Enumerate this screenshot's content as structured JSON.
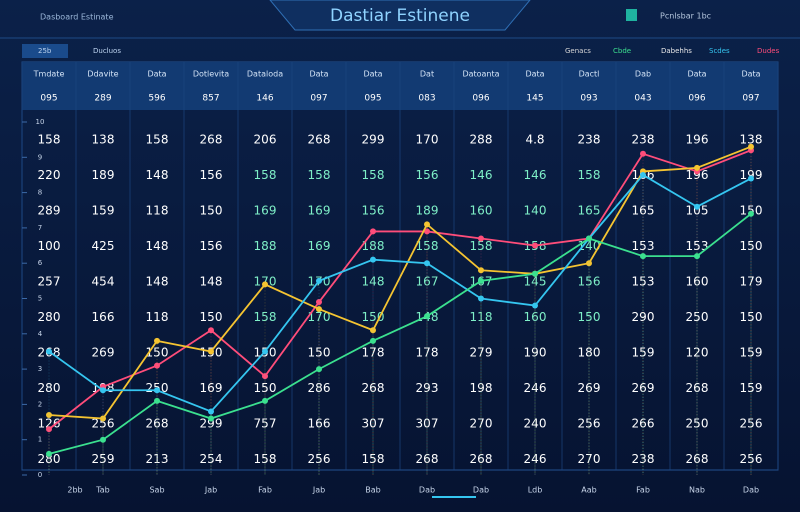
{
  "header": {
    "title": "Dastiar Estinene",
    "left": "Dasboard Estinate",
    "right": "Pcnlsbar 1bc"
  },
  "toolbar": {
    "tabs": [
      "25b",
      "Ducluos"
    ],
    "filters": [
      "Genacs",
      "Cbde",
      "Dabehhs",
      "Scdes",
      "Dudes"
    ]
  },
  "table": {
    "header": [
      "Tmdate",
      "Ddavite",
      "Data",
      "Dotlevita",
      "Dataloda",
      "Data",
      "Data",
      "Dat",
      "Datoanta",
      "Data",
      "Dactl",
      "Dab",
      "Data",
      "Data"
    ],
    "subheader": [
      "095",
      "289",
      "596",
      "857",
      "146",
      "097",
      "095",
      "083",
      "096",
      "145",
      "093",
      "043",
      "096",
      "097"
    ],
    "rows": [
      [
        158,
        138,
        158,
        268,
        206,
        268,
        299,
        170,
        288,
        4.8,
        238,
        238,
        196,
        138
      ],
      [
        220,
        189,
        148,
        156,
        158,
        158,
        158,
        156,
        146,
        146,
        158,
        166,
        196,
        199
      ],
      [
        289,
        159,
        118,
        150,
        169,
        169,
        156,
        189,
        160,
        140,
        165,
        165,
        105,
        150
      ],
      [
        100,
        425,
        148,
        156,
        188,
        169,
        188,
        158,
        158,
        158,
        140,
        153,
        153,
        150
      ],
      [
        257,
        454,
        148,
        148,
        170,
        170,
        148,
        167,
        167,
        145,
        156,
        153,
        160,
        179
      ],
      [
        280,
        166,
        118,
        150,
        158,
        170,
        150,
        148,
        118,
        160,
        150,
        290,
        250,
        150
      ],
      [
        268,
        269,
        150,
        150,
        150,
        150,
        178,
        178,
        279,
        190,
        180,
        159,
        120,
        159
      ],
      [
        280,
        198,
        250,
        169,
        150,
        286,
        268,
        293,
        198,
        246,
        269,
        269,
        268,
        159
      ],
      [
        126,
        256,
        268,
        299,
        757,
        166,
        307,
        307,
        270,
        240,
        256,
        266,
        250,
        256
      ],
      [
        280,
        259,
        213,
        254,
        158,
        256,
        158,
        268,
        268,
        246,
        270,
        238,
        268,
        256
      ]
    ]
  },
  "chart_data": {
    "type": "line",
    "x": [
      "2bb",
      "Tab",
      "Sab",
      "Jab",
      "Fab",
      "Jab",
      "Bab",
      "Dab",
      "Dab",
      "Ldb",
      "Aab",
      "Fab",
      "Nab",
      "Dab"
    ],
    "ylim": [
      0,
      10
    ],
    "yticks": [
      0,
      1,
      2,
      3,
      4,
      5,
      6,
      7,
      8,
      9,
      10
    ],
    "series": [
      {
        "color": "#ff4d7a",
        "values": [
          1.3,
          2.5,
          3.1,
          4.1,
          2.8,
          4.9,
          6.9,
          6.9,
          6.7,
          6.5,
          6.7,
          9.1,
          8.6,
          9.2
        ]
      },
      {
        "color": "#f5c431",
        "values": [
          1.7,
          1.6,
          3.8,
          3.5,
          5.4,
          4.7,
          4.1,
          7.1,
          5.8,
          5.7,
          6.0,
          8.6,
          8.7,
          9.3
        ]
      },
      {
        "color": "#35c6f0",
        "values": [
          3.5,
          2.4,
          2.4,
          1.8,
          3.5,
          5.5,
          6.1,
          6.0,
          5.0,
          4.8,
          6.7,
          8.5,
          7.6,
          8.4
        ]
      },
      {
        "color": "#3be08f",
        "values": [
          0.6,
          1.0,
          2.1,
          1.6,
          2.1,
          3.0,
          3.8,
          4.5,
          5.5,
          5.7,
          6.7,
          6.2,
          6.2,
          7.4
        ]
      }
    ]
  }
}
